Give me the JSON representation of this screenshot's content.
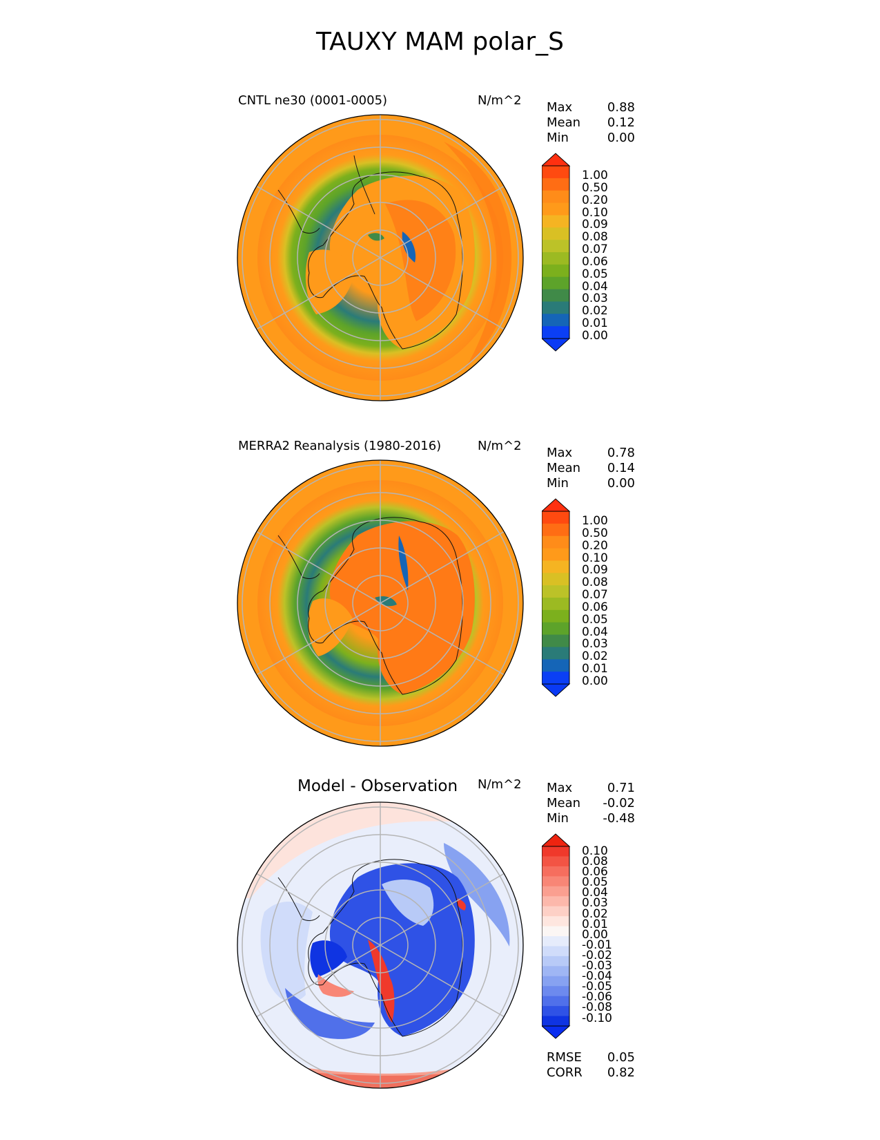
{
  "figure": {
    "title": "TAUXY MAM polar_S"
  },
  "panels": [
    {
      "title": "CNTL ne30 (0001-0005)",
      "units": "N/m^2",
      "stats": [
        {
          "label": "Max",
          "value": "0.88"
        },
        {
          "label": "Mean",
          "value": "0.12"
        },
        {
          "label": "Min",
          "value": "0.00"
        }
      ],
      "colorbar": {
        "ticks": [
          "1.00",
          "0.50",
          "0.20",
          "0.10",
          "0.09",
          "0.08",
          "0.07",
          "0.06",
          "0.05",
          "0.04",
          "0.03",
          "0.02",
          "0.01",
          "0.00"
        ],
        "colors": [
          "#ff4a10",
          "#ff6d14",
          "#ff8c19",
          "#ff9a1a",
          "#f5b422",
          "#d9c024",
          "#bcc228",
          "#9cba22",
          "#7cb01d",
          "#5da32a",
          "#408a48",
          "#2a7b78",
          "#1565b7",
          "#0b3ff5"
        ],
        "top_color": "#ff3010",
        "bottom_color": "#0a3af5"
      }
    },
    {
      "title": "MERRA2 Reanalysis (1980-2016)",
      "units": "N/m^2",
      "stats": [
        {
          "label": "Max",
          "value": "0.78"
        },
        {
          "label": "Mean",
          "value": "0.14"
        },
        {
          "label": "Min",
          "value": "0.00"
        }
      ],
      "colorbar": {
        "ticks": [
          "1.00",
          "0.50",
          "0.20",
          "0.10",
          "0.09",
          "0.08",
          "0.07",
          "0.06",
          "0.05",
          "0.04",
          "0.03",
          "0.02",
          "0.01",
          "0.00"
        ],
        "colors": [
          "#ff4a10",
          "#ff6d14",
          "#ff8c19",
          "#ff9a1a",
          "#f5b422",
          "#d9c024",
          "#bcc228",
          "#9cba22",
          "#7cb01d",
          "#5da32a",
          "#408a48",
          "#2a7b78",
          "#1565b7",
          "#0b3ff5"
        ],
        "top_color": "#ff3010",
        "bottom_color": "#0a3af5"
      }
    },
    {
      "title": "Model - Observation",
      "units": "N/m^2",
      "stats": [
        {
          "label": "Max",
          "value": "0.71"
        },
        {
          "label": "Mean",
          "value": "-0.02"
        },
        {
          "label": "Min",
          "value": "-0.48"
        }
      ],
      "colorbar": {
        "ticks": [
          "0.10",
          "0.08",
          "0.06",
          "0.05",
          "0.04",
          "0.03",
          "0.02",
          "0.01",
          "0.00",
          "-0.01",
          "-0.02",
          "-0.03",
          "-0.04",
          "-0.05",
          "-0.06",
          "-0.08",
          "-0.10"
        ],
        "colors": [
          "#f0392b",
          "#f35444",
          "#f66e5e",
          "#f88676",
          "#fa9f90",
          "#fcb8ab",
          "#fdd0c6",
          "#fee6df",
          "#fbf6f4",
          "#e6ecfb",
          "#d0dcfa",
          "#b8caf7",
          "#9fb6f4",
          "#87a2f1",
          "#6d8aee",
          "#5070ea",
          "#2f52e6",
          "#0f34e2"
        ],
        "top_color": "#ee2410",
        "bottom_color": "#0a2ef0"
      },
      "metrics": [
        {
          "label": "RMSE",
          "value": "0.05"
        },
        {
          "label": "CORR",
          "value": "0.82"
        }
      ]
    }
  ],
  "chart_data": [
    {
      "type": "heatmap",
      "title": "CNTL ne30 (0001-0005)",
      "projection": "south polar stereographic",
      "units": "N/m^2",
      "stats": {
        "max": 0.88,
        "mean": 0.12,
        "min": 0.0
      },
      "levels": [
        0.0,
        0.01,
        0.02,
        0.03,
        0.04,
        0.05,
        0.06,
        0.07,
        0.08,
        0.09,
        0.1,
        0.2,
        0.5,
        1.0
      ]
    },
    {
      "type": "heatmap",
      "title": "MERRA2 Reanalysis (1980-2016)",
      "projection": "south polar stereographic",
      "units": "N/m^2",
      "stats": {
        "max": 0.78,
        "mean": 0.14,
        "min": 0.0
      },
      "levels": [
        0.0,
        0.01,
        0.02,
        0.03,
        0.04,
        0.05,
        0.06,
        0.07,
        0.08,
        0.09,
        0.1,
        0.2,
        0.5,
        1.0
      ]
    },
    {
      "type": "heatmap",
      "title": "Model - Observation",
      "projection": "south polar stereographic",
      "units": "N/m^2",
      "stats": {
        "max": 0.71,
        "mean": -0.02,
        "min": -0.48,
        "rmse": 0.05,
        "corr": 0.82
      },
      "levels": [
        -0.1,
        -0.08,
        -0.06,
        -0.05,
        -0.04,
        -0.03,
        -0.02,
        -0.01,
        0.0,
        0.01,
        0.02,
        0.03,
        0.04,
        0.05,
        0.06,
        0.08,
        0.1
      ]
    }
  ]
}
